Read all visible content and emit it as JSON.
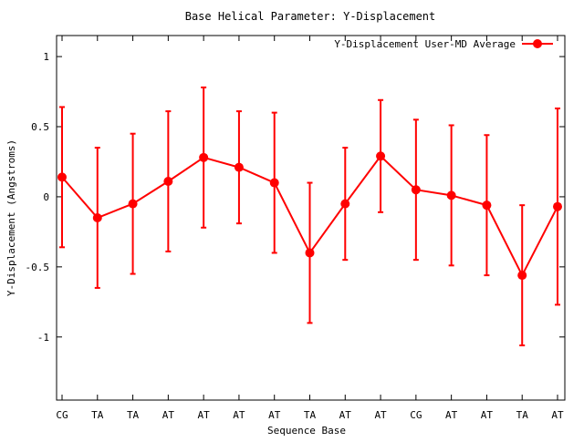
{
  "chart_data": {
    "type": "line",
    "title": "Base  Helical Parameter: Y-Displacement",
    "xlabel": "Sequence Base",
    "ylabel": "Y-Displacement (Angstroms)",
    "ylim": [
      -1.45,
      1.15
    ],
    "yticks": [
      1,
      0.5,
      0,
      -0.5,
      -1
    ],
    "ytick_labels": [
      "1",
      "0.5",
      "0",
      "-0.5",
      "-1"
    ],
    "categories": [
      "CG",
      "TA",
      "TA",
      "AT",
      "AT",
      "AT",
      "AT",
      "TA",
      "AT",
      "AT",
      "CG",
      "AT",
      "AT",
      "TA",
      "AT"
    ],
    "grid": false,
    "legend_position": "top-right",
    "series": [
      {
        "name": "Y-Displacement User-MD Average",
        "color": "#ff0000",
        "values": [
          0.14,
          -0.15,
          -0.05,
          0.11,
          0.28,
          0.21,
          0.1,
          -0.4,
          -0.05,
          0.29,
          0.05,
          0.01,
          -0.06,
          -0.56,
          -0.07
        ],
        "error": [
          0.5,
          0.5,
          0.5,
          0.5,
          0.5,
          0.4,
          0.5,
          0.5,
          0.4,
          0.4,
          0.5,
          0.5,
          0.5,
          0.5,
          0.7
        ]
      }
    ]
  }
}
